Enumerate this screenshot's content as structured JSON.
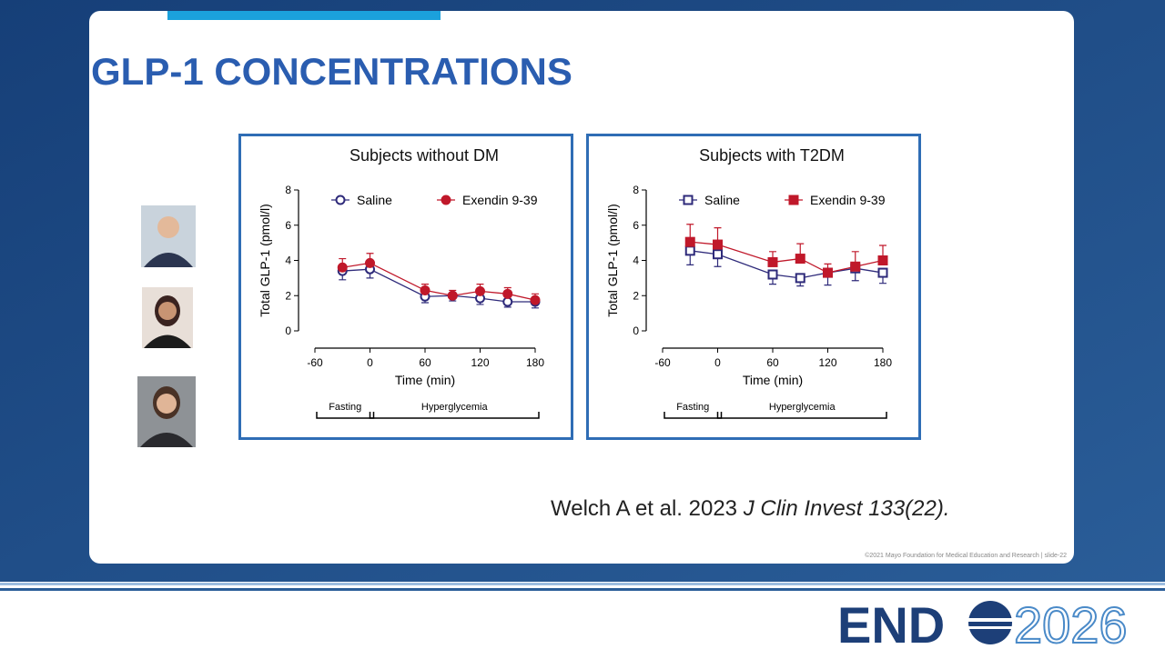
{
  "slide": {
    "title": "GLP-1 CONCENTRATIONS",
    "citation": {
      "authors": "Welch A et al. 2023",
      "journal": "J Clin Invest 133(22)."
    },
    "footer": "©2021 Mayo Foundation for Medical Education and Research  |  slide-22",
    "logo": {
      "left": "END",
      "right": "2026"
    }
  },
  "chart_data": [
    {
      "type": "line",
      "title": "Subjects without DM",
      "xlabel": "Time (min)",
      "ylabel": "Total GLP-1 (pmol/l)",
      "x": [
        -30,
        0,
        60,
        90,
        120,
        150,
        180
      ],
      "xlim": [
        -60,
        180
      ],
      "xticks": [
        -60,
        0,
        60,
        120,
        180
      ],
      "ylim": [
        0,
        8
      ],
      "yticks": [
        0,
        2,
        4,
        6,
        8
      ],
      "marker": "circle",
      "legend": "top",
      "series": [
        {
          "name": "Saline",
          "color": "#2e2a7a",
          "filled": false,
          "error_direction": "down",
          "values": [
            3.4,
            3.5,
            1.95,
            2.0,
            1.85,
            1.65,
            1.65
          ],
          "errors": [
            0.5,
            0.5,
            0.35,
            0.3,
            0.35,
            0.3,
            0.35
          ]
        },
        {
          "name": "Exendin 9-39",
          "color": "#c0182a",
          "filled": true,
          "error_direction": "up",
          "values": [
            3.6,
            3.85,
            2.3,
            2.0,
            2.25,
            2.1,
            1.75
          ],
          "errors": [
            0.5,
            0.55,
            0.35,
            0.3,
            0.4,
            0.35,
            0.35
          ]
        }
      ],
      "phases": [
        {
          "label": "Fasting",
          "start": -60,
          "end": 0
        },
        {
          "label": "Hyperglycemia",
          "start": 0,
          "end": 180
        }
      ]
    },
    {
      "type": "line",
      "title": "Subjects with T2DM",
      "xlabel": "Time (min)",
      "ylabel": "Total GLP-1 (pmol/l)",
      "x": [
        -30,
        0,
        60,
        90,
        120,
        150,
        180
      ],
      "xlim": [
        -60,
        180
      ],
      "xticks": [
        -60,
        0,
        60,
        120,
        180
      ],
      "ylim": [
        0,
        8
      ],
      "yticks": [
        0,
        2,
        4,
        6,
        8
      ],
      "marker": "square",
      "legend": "top",
      "series": [
        {
          "name": "Saline",
          "color": "#2e2a7a",
          "filled": false,
          "error_direction": "down",
          "values": [
            4.55,
            4.35,
            3.2,
            3.0,
            3.3,
            3.55,
            3.3
          ],
          "errors": [
            0.8,
            0.7,
            0.55,
            0.45,
            0.7,
            0.7,
            0.6
          ]
        },
        {
          "name": "Exendin 9-39",
          "color": "#c0182a",
          "filled": true,
          "error_direction": "up",
          "values": [
            5.05,
            4.9,
            3.9,
            4.1,
            3.3,
            3.65,
            4.0
          ],
          "errors": [
            1.0,
            0.95,
            0.6,
            0.85,
            0.5,
            0.85,
            0.85
          ]
        }
      ],
      "phases": [
        {
          "label": "Fasting",
          "start": -60,
          "end": 0
        },
        {
          "label": "Hyperglycemia",
          "start": 0,
          "end": 180
        }
      ]
    }
  ]
}
